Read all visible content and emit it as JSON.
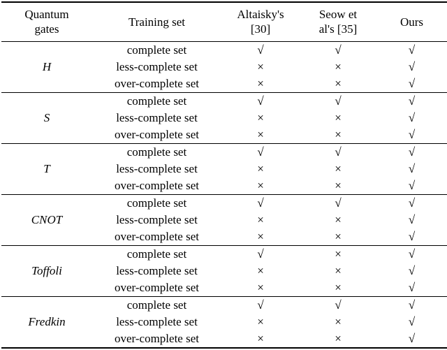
{
  "table": {
    "headers": [
      "Quantum\ngates",
      "Training set",
      "Altaisky's\n[30]",
      "Seow et\nal's [35]",
      "Ours"
    ],
    "check_symbol": "√",
    "cross_symbol": "×",
    "groups": [
      {
        "gate": "H",
        "rows": [
          {
            "training": "complete set",
            "marks": [
              "√",
              "√",
              "√"
            ]
          },
          {
            "training": "less-complete set",
            "marks": [
              "×",
              "×",
              "√"
            ]
          },
          {
            "training": "over-complete set",
            "marks": [
              "×",
              "×",
              "√"
            ]
          }
        ]
      },
      {
        "gate": "S",
        "rows": [
          {
            "training": "complete set",
            "marks": [
              "√",
              "√",
              "√"
            ]
          },
          {
            "training": "less-complete set",
            "marks": [
              "×",
              "×",
              "√"
            ]
          },
          {
            "training": "over-complete set",
            "marks": [
              "×",
              "×",
              "√"
            ]
          }
        ]
      },
      {
        "gate": "T",
        "rows": [
          {
            "training": "complete set",
            "marks": [
              "√",
              "√",
              "√"
            ]
          },
          {
            "training": "less-complete set",
            "marks": [
              "×",
              "×",
              "√"
            ]
          },
          {
            "training": "over-complete set",
            "marks": [
              "×",
              "×",
              "√"
            ]
          }
        ]
      },
      {
        "gate": "CNOT",
        "rows": [
          {
            "training": "complete set",
            "marks": [
              "√",
              "√",
              "√"
            ]
          },
          {
            "training": "less-complete set",
            "marks": [
              "×",
              "×",
              "√"
            ]
          },
          {
            "training": "over-complete set",
            "marks": [
              "×",
              "×",
              "√"
            ]
          }
        ]
      },
      {
        "gate": "Toffoli",
        "rows": [
          {
            "training": "complete set",
            "marks": [
              "√",
              "×",
              "√"
            ]
          },
          {
            "training": "less-complete set",
            "marks": [
              "×",
              "×",
              "√"
            ]
          },
          {
            "training": "over-complete set",
            "marks": [
              "×",
              "×",
              "√"
            ]
          }
        ]
      },
      {
        "gate": "Fredkin",
        "rows": [
          {
            "training": "complete set",
            "marks": [
              "√",
              "√",
              "√"
            ]
          },
          {
            "training": "less-complete set",
            "marks": [
              "×",
              "×",
              "√"
            ]
          },
          {
            "training": "over-complete set",
            "marks": [
              "×",
              "×",
              "√"
            ]
          }
        ]
      }
    ]
  }
}
